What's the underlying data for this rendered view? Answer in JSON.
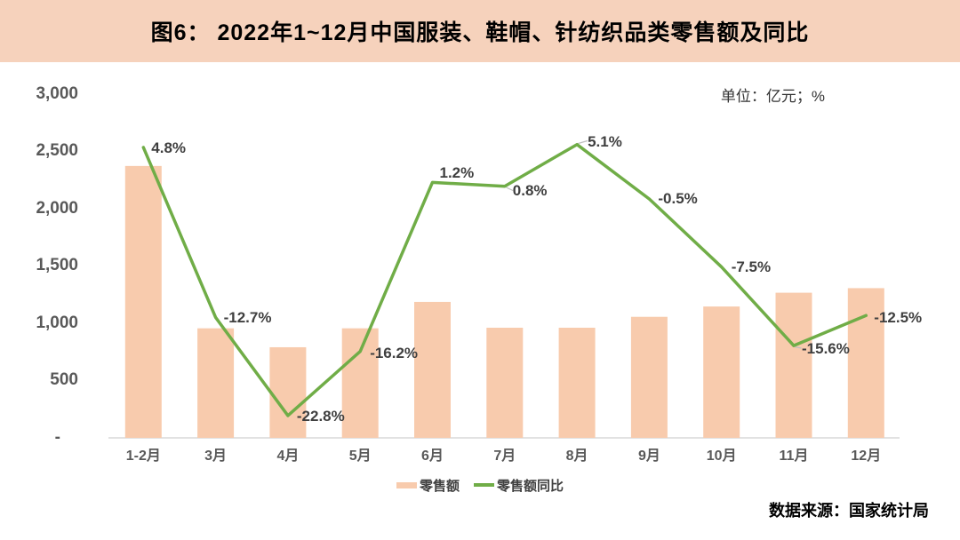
{
  "figure": {
    "title": "图6： 2022年1~12月中国服装、鞋帽、针纺织品类零售额及同比",
    "unit_label": "单位：亿元；%",
    "source": "数据来源：国家统计局"
  },
  "legend": {
    "bar_label": "零售额",
    "line_label": "零售额同比"
  },
  "colors": {
    "header_bg": "#F6D2BC",
    "bar_fill": "#F8CBAD",
    "line_stroke": "#70AD47",
    "axis_text": "#595959",
    "data_label_text": "#3F3F3F",
    "axis_line": "#D9D9D9",
    "leader_line": "#BFBFBF"
  },
  "chart_data": {
    "type": "bar",
    "combo": "bar + line (dual axis)",
    "title": "2022年1~12月中国服装、鞋帽、针纺织品类零售额及同比",
    "categories": [
      "1-2月",
      "3月",
      "4月",
      "5月",
      "6月",
      "7月",
      "8月",
      "9月",
      "10月",
      "11月",
      "12月"
    ],
    "series": [
      {
        "name": "零售额",
        "type": "bar",
        "unit": "亿元",
        "axis": "left",
        "values": [
          2370,
          955,
          790,
          955,
          1185,
          960,
          960,
          1055,
          1145,
          1265,
          1305
        ]
      },
      {
        "name": "零售额同比",
        "type": "line",
        "unit": "%",
        "axis": "right",
        "values": [
          4.8,
          -12.7,
          -22.8,
          -16.2,
          1.2,
          0.8,
          5.1,
          -0.5,
          -7.5,
          -15.6,
          -12.5
        ],
        "labels": [
          "4.8%",
          "-12.7%",
          "-22.8%",
          "-16.2%",
          "1.2%",
          "0.8%",
          "5.1%",
          "-0.5%",
          "-7.5%",
          "-15.6%",
          "-12.5%"
        ]
      }
    ],
    "y_axis": {
      "ticks": [
        "3,000",
        "2,500",
        "2,000",
        "1,500",
        "1,000",
        "500",
        "-"
      ],
      "tick_values": [
        3000,
        2500,
        2000,
        1500,
        1000,
        500,
        0
      ],
      "range": [
        0,
        3000
      ]
    },
    "y2_axis": {
      "range": [
        -25.1,
        10.3
      ],
      "labels_visible": false
    },
    "grid": false,
    "legend_position": "bottom-center"
  }
}
